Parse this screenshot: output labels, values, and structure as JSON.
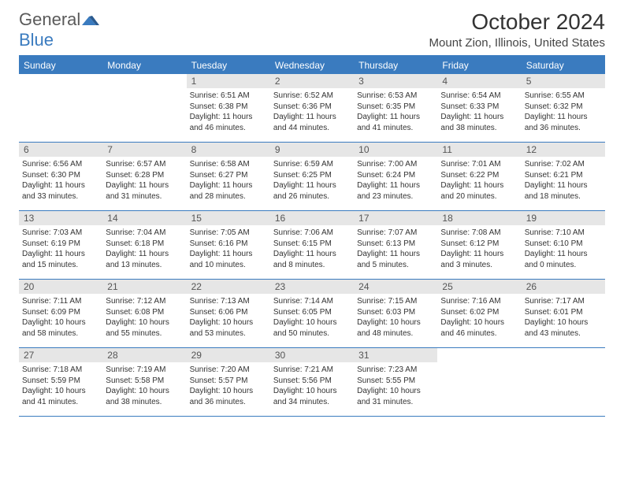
{
  "logo": {
    "part1": "General",
    "part2": "Blue"
  },
  "title": "October 2024",
  "location": "Mount Zion, Illinois, United States",
  "colors": {
    "header_bg": "#3a7bbf",
    "date_bg": "#e6e6e6",
    "text": "#333333",
    "logo_gray": "#5a5a5a",
    "logo_blue": "#3a7bbf"
  },
  "day_names": [
    "Sunday",
    "Monday",
    "Tuesday",
    "Wednesday",
    "Thursday",
    "Friday",
    "Saturday"
  ],
  "weeks": [
    [
      {
        "n": "",
        "sr": "",
        "ss": "",
        "dl": ""
      },
      {
        "n": "",
        "sr": "",
        "ss": "",
        "dl": ""
      },
      {
        "n": "1",
        "sr": "Sunrise: 6:51 AM",
        "ss": "Sunset: 6:38 PM",
        "dl": "Daylight: 11 hours and 46 minutes."
      },
      {
        "n": "2",
        "sr": "Sunrise: 6:52 AM",
        "ss": "Sunset: 6:36 PM",
        "dl": "Daylight: 11 hours and 44 minutes."
      },
      {
        "n": "3",
        "sr": "Sunrise: 6:53 AM",
        "ss": "Sunset: 6:35 PM",
        "dl": "Daylight: 11 hours and 41 minutes."
      },
      {
        "n": "4",
        "sr": "Sunrise: 6:54 AM",
        "ss": "Sunset: 6:33 PM",
        "dl": "Daylight: 11 hours and 38 minutes."
      },
      {
        "n": "5",
        "sr": "Sunrise: 6:55 AM",
        "ss": "Sunset: 6:32 PM",
        "dl": "Daylight: 11 hours and 36 minutes."
      }
    ],
    [
      {
        "n": "6",
        "sr": "Sunrise: 6:56 AM",
        "ss": "Sunset: 6:30 PM",
        "dl": "Daylight: 11 hours and 33 minutes."
      },
      {
        "n": "7",
        "sr": "Sunrise: 6:57 AM",
        "ss": "Sunset: 6:28 PM",
        "dl": "Daylight: 11 hours and 31 minutes."
      },
      {
        "n": "8",
        "sr": "Sunrise: 6:58 AM",
        "ss": "Sunset: 6:27 PM",
        "dl": "Daylight: 11 hours and 28 minutes."
      },
      {
        "n": "9",
        "sr": "Sunrise: 6:59 AM",
        "ss": "Sunset: 6:25 PM",
        "dl": "Daylight: 11 hours and 26 minutes."
      },
      {
        "n": "10",
        "sr": "Sunrise: 7:00 AM",
        "ss": "Sunset: 6:24 PM",
        "dl": "Daylight: 11 hours and 23 minutes."
      },
      {
        "n": "11",
        "sr": "Sunrise: 7:01 AM",
        "ss": "Sunset: 6:22 PM",
        "dl": "Daylight: 11 hours and 20 minutes."
      },
      {
        "n": "12",
        "sr": "Sunrise: 7:02 AM",
        "ss": "Sunset: 6:21 PM",
        "dl": "Daylight: 11 hours and 18 minutes."
      }
    ],
    [
      {
        "n": "13",
        "sr": "Sunrise: 7:03 AM",
        "ss": "Sunset: 6:19 PM",
        "dl": "Daylight: 11 hours and 15 minutes."
      },
      {
        "n": "14",
        "sr": "Sunrise: 7:04 AM",
        "ss": "Sunset: 6:18 PM",
        "dl": "Daylight: 11 hours and 13 minutes."
      },
      {
        "n": "15",
        "sr": "Sunrise: 7:05 AM",
        "ss": "Sunset: 6:16 PM",
        "dl": "Daylight: 11 hours and 10 minutes."
      },
      {
        "n": "16",
        "sr": "Sunrise: 7:06 AM",
        "ss": "Sunset: 6:15 PM",
        "dl": "Daylight: 11 hours and 8 minutes."
      },
      {
        "n": "17",
        "sr": "Sunrise: 7:07 AM",
        "ss": "Sunset: 6:13 PM",
        "dl": "Daylight: 11 hours and 5 minutes."
      },
      {
        "n": "18",
        "sr": "Sunrise: 7:08 AM",
        "ss": "Sunset: 6:12 PM",
        "dl": "Daylight: 11 hours and 3 minutes."
      },
      {
        "n": "19",
        "sr": "Sunrise: 7:10 AM",
        "ss": "Sunset: 6:10 PM",
        "dl": "Daylight: 11 hours and 0 minutes."
      }
    ],
    [
      {
        "n": "20",
        "sr": "Sunrise: 7:11 AM",
        "ss": "Sunset: 6:09 PM",
        "dl": "Daylight: 10 hours and 58 minutes."
      },
      {
        "n": "21",
        "sr": "Sunrise: 7:12 AM",
        "ss": "Sunset: 6:08 PM",
        "dl": "Daylight: 10 hours and 55 minutes."
      },
      {
        "n": "22",
        "sr": "Sunrise: 7:13 AM",
        "ss": "Sunset: 6:06 PM",
        "dl": "Daylight: 10 hours and 53 minutes."
      },
      {
        "n": "23",
        "sr": "Sunrise: 7:14 AM",
        "ss": "Sunset: 6:05 PM",
        "dl": "Daylight: 10 hours and 50 minutes."
      },
      {
        "n": "24",
        "sr": "Sunrise: 7:15 AM",
        "ss": "Sunset: 6:03 PM",
        "dl": "Daylight: 10 hours and 48 minutes."
      },
      {
        "n": "25",
        "sr": "Sunrise: 7:16 AM",
        "ss": "Sunset: 6:02 PM",
        "dl": "Daylight: 10 hours and 46 minutes."
      },
      {
        "n": "26",
        "sr": "Sunrise: 7:17 AM",
        "ss": "Sunset: 6:01 PM",
        "dl": "Daylight: 10 hours and 43 minutes."
      }
    ],
    [
      {
        "n": "27",
        "sr": "Sunrise: 7:18 AM",
        "ss": "Sunset: 5:59 PM",
        "dl": "Daylight: 10 hours and 41 minutes."
      },
      {
        "n": "28",
        "sr": "Sunrise: 7:19 AM",
        "ss": "Sunset: 5:58 PM",
        "dl": "Daylight: 10 hours and 38 minutes."
      },
      {
        "n": "29",
        "sr": "Sunrise: 7:20 AM",
        "ss": "Sunset: 5:57 PM",
        "dl": "Daylight: 10 hours and 36 minutes."
      },
      {
        "n": "30",
        "sr": "Sunrise: 7:21 AM",
        "ss": "Sunset: 5:56 PM",
        "dl": "Daylight: 10 hours and 34 minutes."
      },
      {
        "n": "31",
        "sr": "Sunrise: 7:23 AM",
        "ss": "Sunset: 5:55 PM",
        "dl": "Daylight: 10 hours and 31 minutes."
      },
      {
        "n": "",
        "sr": "",
        "ss": "",
        "dl": ""
      },
      {
        "n": "",
        "sr": "",
        "ss": "",
        "dl": ""
      }
    ]
  ]
}
